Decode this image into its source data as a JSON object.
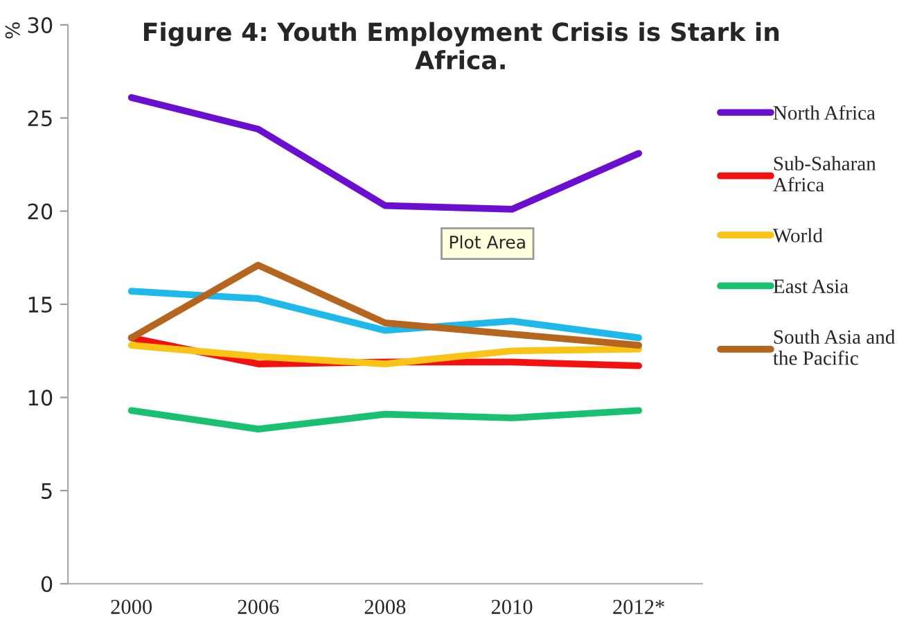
{
  "chart_data": {
    "type": "line",
    "title": "Figure 4: Youth Employment Crisis is Stark in\nAfrica.",
    "ylabel": "%",
    "categories": [
      "2000",
      "2006",
      "2008",
      "2010",
      "2012*"
    ],
    "series": [
      {
        "name": "North Africa",
        "color": "#6a0fd0",
        "values": [
          26.1,
          24.4,
          20.3,
          20.1,
          23.1
        ]
      },
      {
        "color": "#1fb8ea",
        "values": [
          15.7,
          15.3,
          13.6,
          14.1,
          13.2
        ]
      },
      {
        "name": "Sub-Saharan\nAfrica",
        "color": "#f21010",
        "values": [
          13.2,
          11.8,
          11.9,
          11.9,
          11.7
        ]
      },
      {
        "name": "World",
        "color": "#fac416",
        "values": [
          12.8,
          12.2,
          11.8,
          12.5,
          12.6
        ]
      },
      {
        "name": "East Asia",
        "color": "#18c070",
        "values": [
          9.3,
          8.3,
          9.1,
          8.9,
          9.3
        ]
      },
      {
        "name": "South Asia and\nthe Pacific",
        "color": "#b5651d",
        "values": [
          13.2,
          17.1,
          14.0,
          13.4,
          12.8
        ]
      }
    ],
    "ylim": [
      0,
      30
    ],
    "yticks": [
      0,
      5,
      10,
      15,
      20,
      25,
      30
    ],
    "annotations": [
      "Plot Area"
    ],
    "grid": false,
    "legend": "right",
    "marker": "none",
    "line_style": "solid"
  }
}
